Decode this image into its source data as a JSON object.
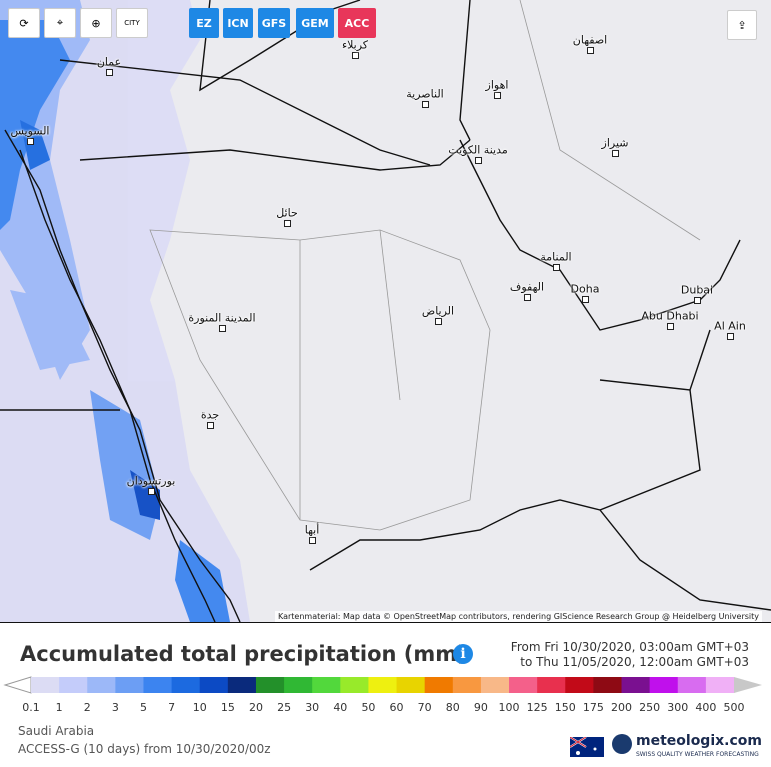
{
  "toolbar": {
    "city_icon": "CITY",
    "models": [
      "EZ",
      "ICN",
      "GFS",
      "GEM",
      "ACC"
    ]
  },
  "map": {
    "cities": [
      "عمان",
      "السويس",
      "كربلاء",
      "اصفهان",
      "الناصرية",
      "اهواز",
      "مدينة الكويت",
      "شيراز",
      "حائل",
      "المنامة",
      "الهفوف",
      "Doha",
      "Dubai",
      "Abu Dhabi",
      "Al Ain",
      "الرياض",
      "المدينة المنورة",
      "جدة",
      "بورتسودان",
      "أبها"
    ],
    "attribution": "Kartenmaterial: Map data © OpenStreetMap contributors, rendering GIScience Research Group @ Heidelberg University"
  },
  "legend": {
    "title": "Accumulated total precipitation (mm)",
    "from": "From Fri 10/30/2020, 03:00am GMT+03",
    "to": "to Thu 11/05/2020, 12:00am GMT+03",
    "ticks": [
      0.1,
      1,
      2,
      3,
      5,
      7,
      10,
      15,
      20,
      25,
      30,
      40,
      50,
      60,
      70,
      80,
      90,
      100,
      125,
      150,
      175,
      200,
      250,
      300,
      400,
      500
    ],
    "colors": [
      "#ffffff",
      "#dcdcf4",
      "#c4ccfa",
      "#9cb8f8",
      "#6c9ef4",
      "#3c84f0",
      "#1c6ae0",
      "#0c4ac4",
      "#0a2a7c",
      "#23902a",
      "#30b834",
      "#52d83c",
      "#98ea2a",
      "#eef010",
      "#e8d400",
      "#f07a00",
      "#f89840",
      "#f8b888",
      "#f4608a",
      "#e8304e",
      "#c20a18",
      "#8e0a14",
      "#7a1090",
      "#c010ec",
      "#d86cf0",
      "#f0b0f6",
      "#fce8fc",
      "#c8c8c8"
    ]
  },
  "footer": {
    "region": "Saudi Arabia",
    "model_run": "ACCESS-G (10 days) from 10/30/2020/00z",
    "brand": "meteologix.com",
    "tagline": "SWISS QUALITY WEATHER FORECASTING"
  }
}
